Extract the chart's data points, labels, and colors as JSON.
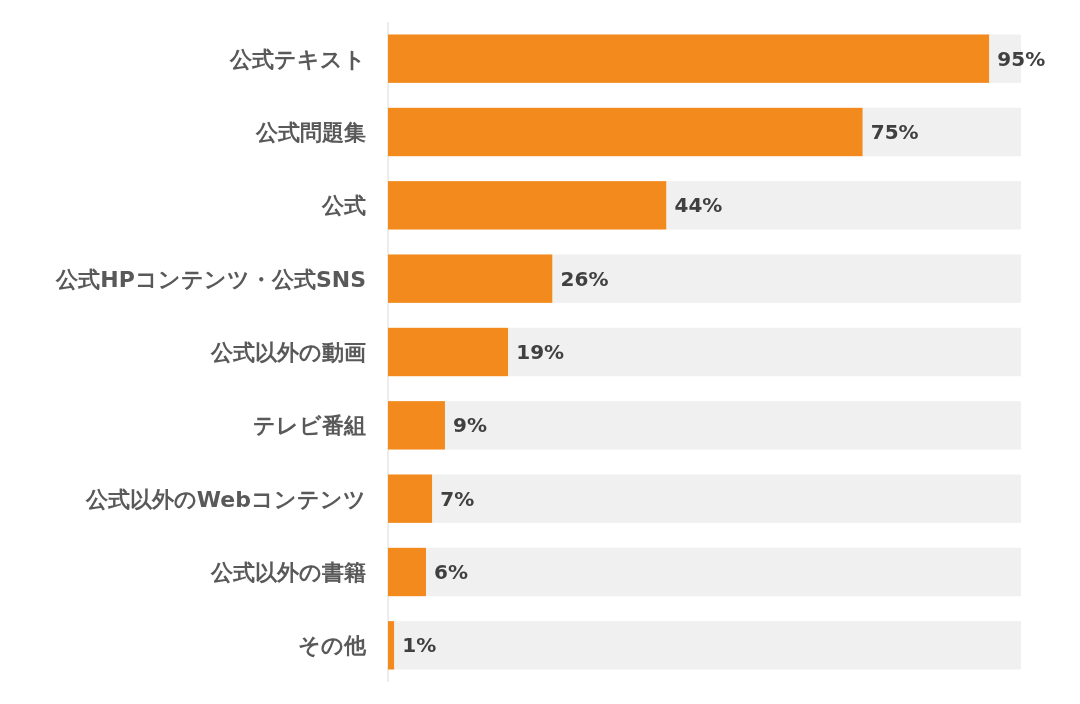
{
  "chart_data": {
    "type": "bar",
    "orientation": "horizontal",
    "stacked": true,
    "xlim": [
      0,
      100
    ],
    "categories": [
      "公式テキスト",
      "公式問題集",
      "公式",
      "公式HPコンテンツ・公式SNS",
      "公式以外の動画",
      "テレビ番組",
      "公式以外のWebコンテンツ",
      "公式以外の書籍",
      "その他"
    ],
    "series": [
      {
        "color": "#f28a1e",
        "values": [
          95,
          75,
          44,
          26,
          19,
          9,
          7,
          6,
          1
        ],
        "value_labels": [
          "95%",
          "75%",
          "44%",
          "26%",
          "19%",
          "9%",
          "7%",
          "6%",
          "1%"
        ]
      },
      {
        "color": "#f0f0f0",
        "values": [
          5,
          25,
          56,
          74,
          81,
          91,
          93,
          94,
          99
        ]
      }
    ]
  }
}
